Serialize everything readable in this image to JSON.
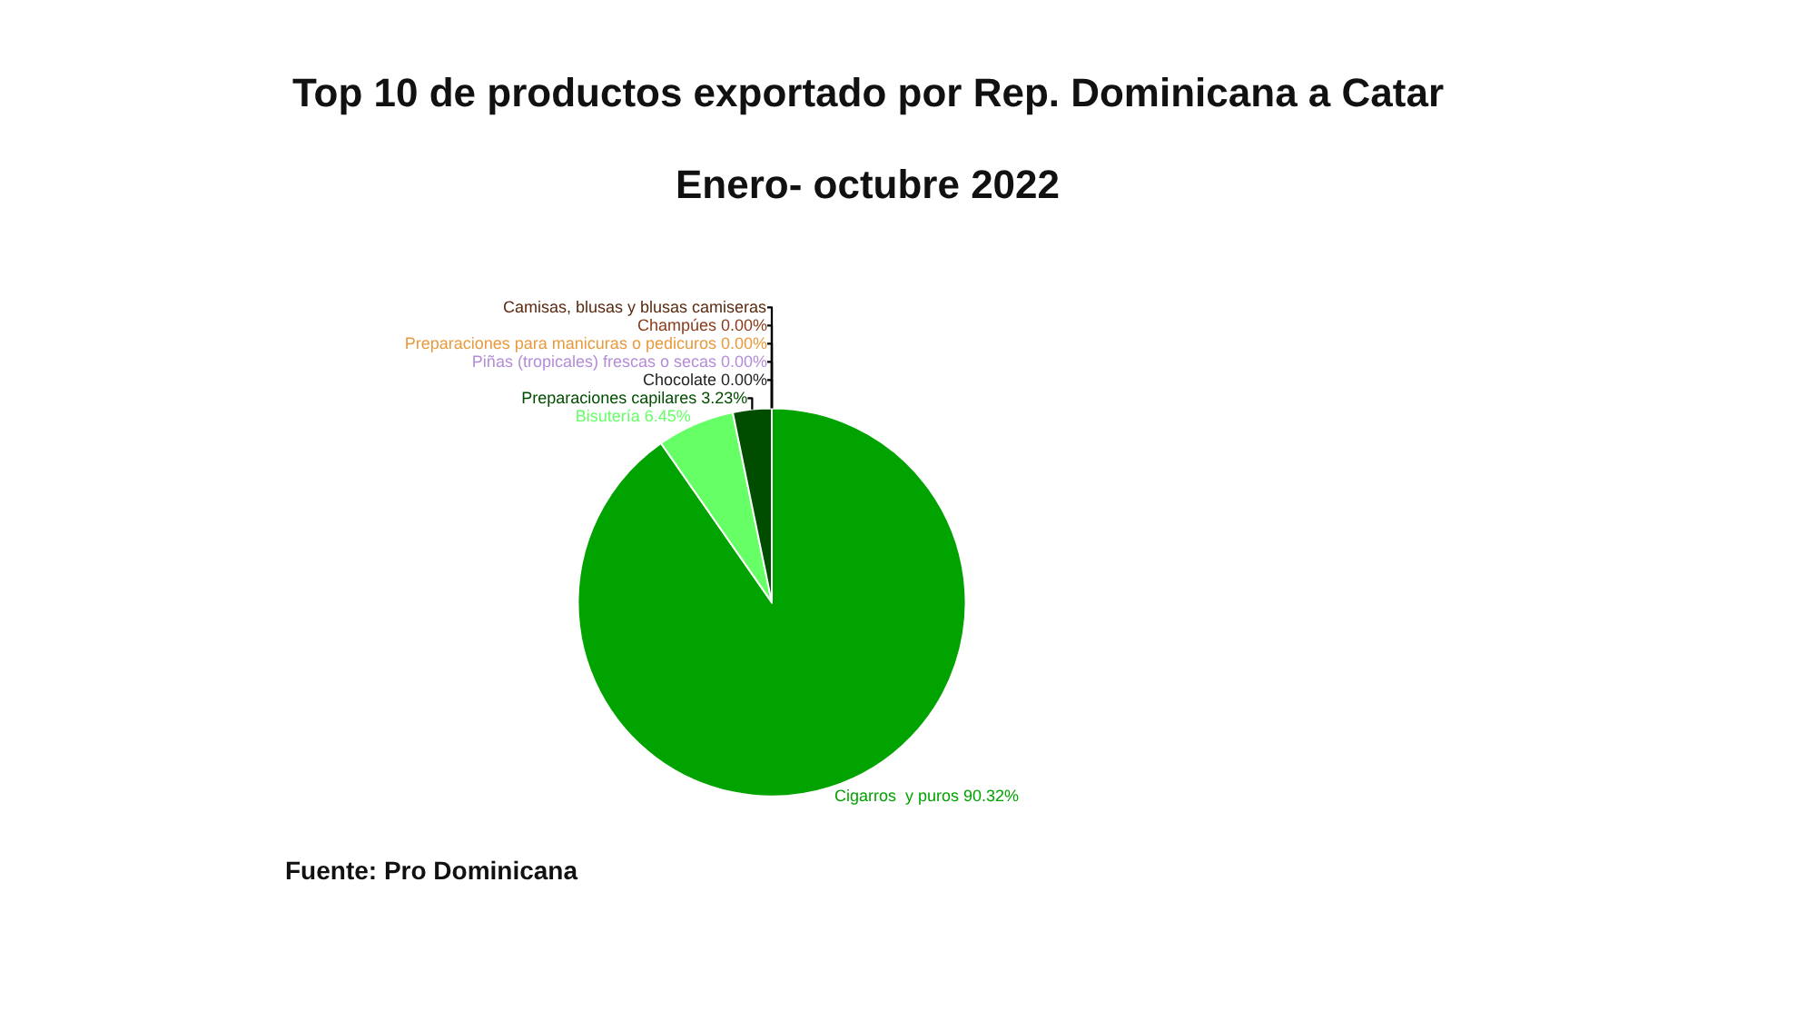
{
  "chart_data": {
    "type": "pie",
    "title": "Top 10 de productos exportado por Rep. Dominicana a Catar",
    "subtitle": "Enero- octubre 2022",
    "categories": [
      "Cigarros  y puros",
      "Bisutería",
      "Preparaciones capilares",
      "Chocolate",
      "Piñas (tropicales) frescas o secas",
      "Preparaciones para manicuras o pedicuros",
      "Champúes",
      "Camisas, blusas y blusas camiseras"
    ],
    "values": [
      90.32,
      6.45,
      3.23,
      0,
      0,
      0,
      0,
      0
    ],
    "value_labels": [
      "90.32%",
      "6.45%",
      "3.23%",
      "0.00%",
      "0.00%",
      "0.00%",
      "0.00%",
      null
    ],
    "colors": [
      "#00a300",
      "#66ff66",
      "#004d00",
      "#222222",
      "#b48cd8",
      "#e89a3c",
      "#8b3a1a",
      "#5a2a10"
    ],
    "annotations": [
      "Fuente: Pro Dominicana"
    ]
  }
}
